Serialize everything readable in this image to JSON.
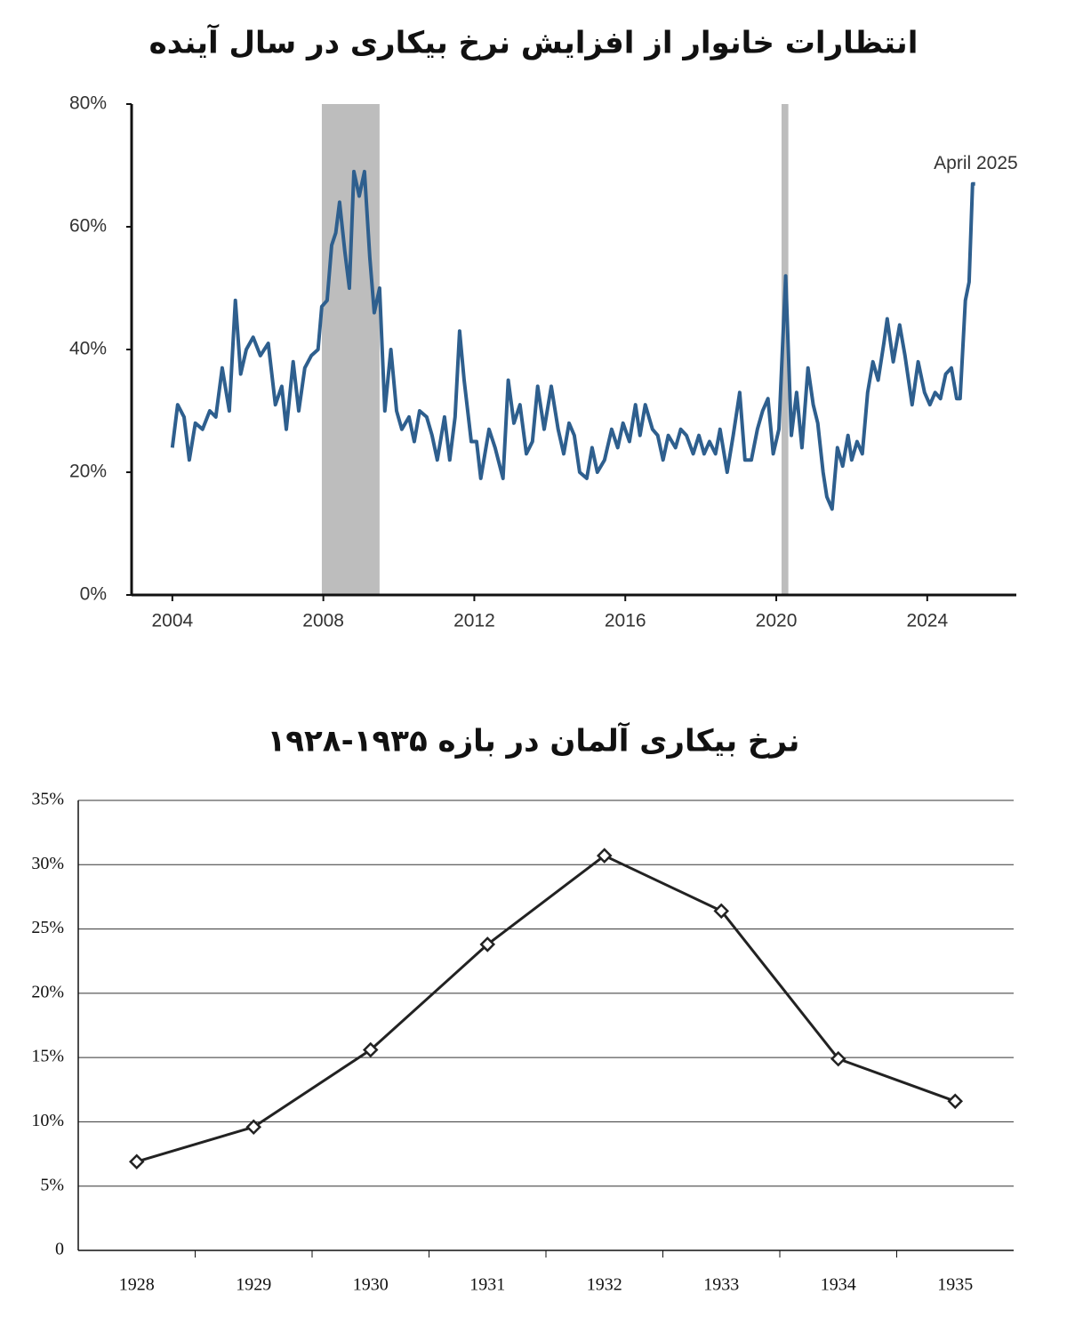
{
  "chart_data": [
    {
      "type": "line",
      "title": "انتظارات خانوار از افزایش نرخ بیکاری در سال آینده",
      "annotation": "April 2025",
      "color": "#2e5f8e",
      "shaded_periods": [
        [
          2007.96,
          2009.49
        ],
        [
          2020.14,
          2020.32
        ]
      ],
      "shade_color": "#bdbdbd",
      "grid": false,
      "xlim": [
        2002.92,
        2026.36
      ],
      "xticks": [
        2004,
        2008,
        2012,
        2016,
        2020,
        2024
      ],
      "ylim": [
        0,
        80
      ],
      "yticks": [
        {
          "value": 0,
          "label": "0%"
        },
        {
          "value": 20,
          "label": "20%"
        },
        {
          "value": 40,
          "label": "40%"
        },
        {
          "value": 60,
          "label": "60%"
        },
        {
          "value": 80,
          "label": "80%"
        }
      ],
      "x": [
        2004.0,
        2004.14,
        2004.31,
        2004.45,
        2004.61,
        2004.8,
        2004.99,
        2005.15,
        2005.32,
        2005.51,
        2005.67,
        2005.81,
        2005.96,
        2006.14,
        2006.33,
        2006.54,
        2006.73,
        2006.9,
        2007.02,
        2007.2,
        2007.35,
        2007.51,
        2007.68,
        2007.86,
        2007.96,
        2008.1,
        2008.22,
        2008.33,
        2008.43,
        2008.57,
        2008.69,
        2008.81,
        2008.95,
        2009.09,
        2009.23,
        2009.35,
        2009.49,
        2009.63,
        2009.79,
        2009.94,
        2010.08,
        2010.27,
        2010.41,
        2010.55,
        2010.74,
        2010.88,
        2011.02,
        2011.21,
        2011.35,
        2011.49,
        2011.61,
        2011.73,
        2011.92,
        2012.06,
        2012.17,
        2012.39,
        2012.55,
        2012.76,
        2012.9,
        2013.05,
        2013.21,
        2013.38,
        2013.54,
        2013.68,
        2013.85,
        2014.04,
        2014.22,
        2014.37,
        2014.51,
        2014.65,
        2014.79,
        2014.98,
        2015.12,
        2015.26,
        2015.45,
        2015.64,
        2015.8,
        2015.94,
        2016.11,
        2016.27,
        2016.39,
        2016.53,
        2016.72,
        2016.86,
        2017.0,
        2017.14,
        2017.33,
        2017.47,
        2017.62,
        2017.8,
        2017.95,
        2018.09,
        2018.23,
        2018.39,
        2018.51,
        2018.7,
        2018.86,
        2019.03,
        2019.17,
        2019.34,
        2019.5,
        2019.64,
        2019.78,
        2019.92,
        2020.07,
        2020.25,
        2020.4,
        2020.54,
        2020.68,
        2020.84,
        2020.98,
        2021.1,
        2021.24,
        2021.34,
        2021.48,
        2021.62,
        2021.76,
        2021.9,
        2022.0,
        2022.14,
        2022.28,
        2022.42,
        2022.56,
        2022.7,
        2022.85,
        2022.94,
        2023.1,
        2023.27,
        2023.41,
        2023.6,
        2023.76,
        2023.93,
        2024.07,
        2024.21,
        2024.35,
        2024.49,
        2024.64,
        2024.78,
        2024.87,
        2025.01,
        2025.11,
        2025.2,
        2025.27
      ],
      "values": [
        24,
        31,
        29,
        22,
        28,
        27,
        30,
        29,
        37,
        30,
        48,
        36,
        40,
        42,
        39,
        41,
        31,
        34,
        27,
        38,
        30,
        37,
        39,
        40,
        47,
        48,
        57,
        59,
        64,
        56,
        50,
        69,
        65,
        69,
        55,
        46,
        50,
        30,
        40,
        30,
        27,
        29,
        25,
        30,
        29,
        26,
        22,
        29,
        22,
        29,
        43,
        35,
        25,
        25,
        19,
        27,
        24,
        19,
        35,
        28,
        31,
        23,
        25,
        34,
        27,
        34,
        27,
        23,
        28,
        26,
        20,
        19,
        24,
        20,
        22,
        27,
        24,
        28,
        25,
        31,
        26,
        31,
        27,
        26,
        22,
        26,
        24,
        27,
        26,
        23,
        26,
        23,
        25,
        23,
        27,
        20,
        26,
        33,
        22,
        22,
        27,
        30,
        32,
        23,
        27,
        52,
        26,
        33,
        24,
        37,
        31,
        28,
        20,
        16,
        14,
        24,
        21,
        26,
        22,
        25,
        23,
        33,
        38,
        35,
        41,
        45,
        38,
        44,
        39,
        31,
        38,
        33,
        31,
        33,
        32,
        36,
        37,
        32,
        32,
        48,
        51,
        67,
        67
      ]
    },
    {
      "type": "line",
      "title": "نرخ بیکاری آلمان در بازه ۱۹۳۵-۱۹۲۸",
      "color": "#222222",
      "marker": "diamond",
      "grid": true,
      "categories": [
        "1928",
        "1929",
        "1930",
        "1931",
        "1932",
        "1933",
        "1934",
        "1935"
      ],
      "values": [
        6.9,
        9.6,
        15.6,
        23.8,
        30.7,
        26.4,
        14.9,
        11.6
      ],
      "ylim": [
        0,
        35
      ],
      "yticks": [
        0,
        {
          "value": 5,
          "label": "5%"
        },
        {
          "value": 10,
          "label": "10%"
        },
        {
          "value": 15,
          "label": "15%"
        },
        {
          "value": 20,
          "label": "20%"
        },
        {
          "value": 25,
          "label": "25%"
        },
        {
          "value": 30,
          "label": "30%"
        },
        {
          "value": 35,
          "label": "35%"
        }
      ]
    }
  ]
}
